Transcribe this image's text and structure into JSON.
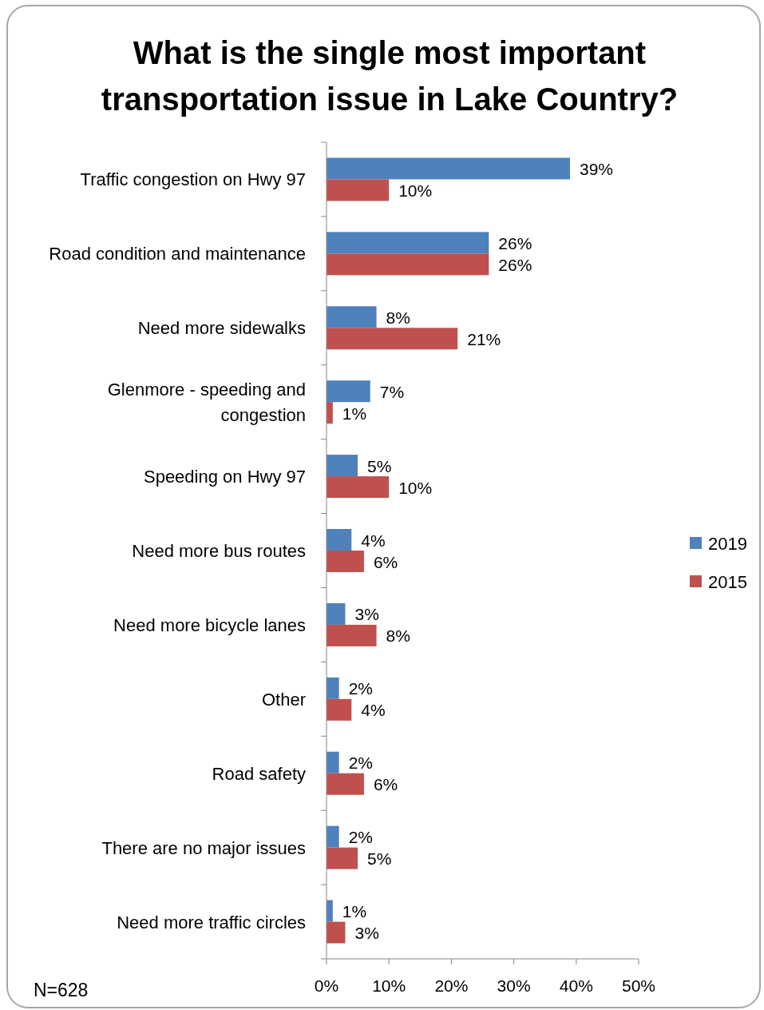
{
  "chart_data": {
    "type": "bar",
    "orientation": "horizontal",
    "title": "What is the single most important transportation issue in Lake Country?",
    "categories": [
      "Traffic congestion on Hwy 97",
      "Road condition and maintenance",
      "Need more sidewalks",
      "Glenmore - speeding and congestion",
      "Speeding on Hwy 97",
      "Need more bus routes",
      "Need more bicycle lanes",
      "Other",
      "Road safety",
      "There are no major issues",
      "Need more traffic circles"
    ],
    "series": [
      {
        "name": "2019",
        "color": "#4f81bd",
        "values": [
          39,
          26,
          8,
          7,
          5,
          4,
          3,
          2,
          2,
          2,
          1
        ],
        "value_labels": [
          "39%",
          "26%",
          "8%",
          "7%",
          "5%",
          "4%",
          "3%",
          "2%",
          "2%",
          "2%",
          "1%"
        ]
      },
      {
        "name": "2015",
        "color": "#c0504d",
        "values": [
          10,
          26,
          21,
          1,
          10,
          6,
          8,
          4,
          6,
          5,
          3
        ],
        "value_labels": [
          "10%",
          "26%",
          "21%",
          "1%",
          "10%",
          "6%",
          "8%",
          "4%",
          "6%",
          "5%",
          "3%"
        ]
      }
    ],
    "xlim": [
      0,
      50
    ],
    "xticks": [
      {
        "value": 0,
        "label": "0%"
      },
      {
        "value": 10,
        "label": "10%"
      },
      {
        "value": 20,
        "label": "20%"
      },
      {
        "value": 30,
        "label": "30%"
      },
      {
        "value": 40,
        "label": "40%"
      },
      {
        "value": 50,
        "label": "50%"
      }
    ],
    "legend": "right",
    "grid": false,
    "annotations": [
      "N=628"
    ]
  }
}
